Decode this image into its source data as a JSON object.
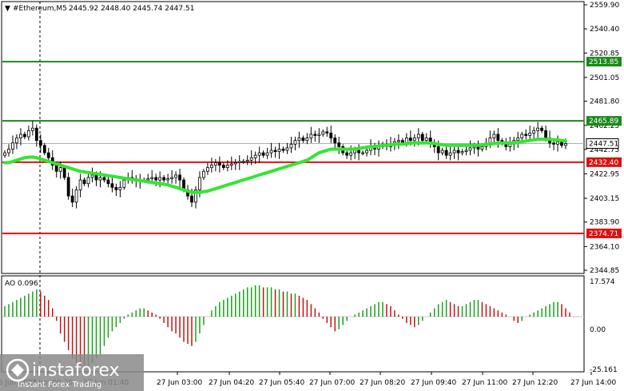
{
  "header": {
    "symbol_label": "#Ethereum,M5",
    "ohlc": "2445.92 2448.40 2445.74 2447.51"
  },
  "indicator": {
    "label": "AO 0.096",
    "scale_top": "17.574",
    "scale_mid": "0.00",
    "scale_bottom": "-25.161"
  },
  "watermark": {
    "brand": "instaforex",
    "tagline": "Instant Forex Trading"
  },
  "colors": {
    "bull_candle": "#000000",
    "bear_candle": "#000000",
    "ma_line": "#32e632",
    "resistance": "#1a8a1a",
    "support": "#dd1111",
    "ao_up": "#1aa11a",
    "ao_down": "#c41414",
    "current_price_tag": "#000000"
  },
  "chart_data": {
    "type": "candlestick",
    "title": "",
    "instrument": "#Ethereum",
    "timeframe": "M5",
    "y_ticks": [
      2559.9,
      2540.4,
      2520.85,
      2501.05,
      2481.8,
      2462.25,
      2442.75,
      2422.95,
      2403.15,
      2383.9,
      2364.1,
      2344.85
    ],
    "ylim": [
      2344.85,
      2559.9
    ],
    "x_tick_labels": [
      "26 Jun 2024",
      "27 Jun 00:20",
      "27 Jun 01:40",
      "27 Jun 03:00",
      "27 Jun 04:20",
      "27 Jun 05:40",
      "27 Jun 07:00",
      "27 Jun 08:20",
      "27 Jun 09:40",
      "27 Jun 11:00",
      "27 Jun 12:20",
      "27 Jun 14:00"
    ],
    "x_tick_labels_visible": [
      "26 Jun",
      "27 Jun 03:00",
      "27 Jun 04:20",
      "27 Jun 05:40",
      "27 Jun 07:00",
      "27 Jun 08:20",
      "27 Jun 09:40",
      "27 Jun 11:00",
      "27 Jun 12:20",
      "27 Jun 14:00"
    ],
    "x_tick_labels_visible_text": [
      "26 Jun 2024",
      "27 Jun 00:20",
      "27 Jun 01:40"
    ],
    "levels": [
      {
        "price": 2513.85,
        "label": "2513.85",
        "kind": "resistance"
      },
      {
        "price": 2465.89,
        "label": "2465.89",
        "kind": "resistance"
      },
      {
        "price": 2432.4,
        "label": "2432.40",
        "kind": "support"
      },
      {
        "price": 2374.71,
        "label": "2374.71",
        "kind": "support"
      }
    ],
    "current_price": {
      "price": 2447.51,
      "label": "2447.51"
    },
    "close": [
      2440,
      2443,
      2448,
      2452,
      2455,
      2453,
      2458,
      2460,
      2450,
      2446,
      2440,
      2436,
      2430,
      2425,
      2428,
      2420,
      2405,
      2400,
      2410,
      2418,
      2415,
      2420,
      2422,
      2418,
      2420,
      2418,
      2415,
      2412,
      2410,
      2412,
      2418,
      2420,
      2419,
      2417,
      2418,
      2418,
      2419,
      2420,
      2418,
      2420,
      2418,
      2419,
      2420,
      2422,
      2418,
      2410,
      2405,
      2400,
      2410,
      2420,
      2425,
      2428,
      2430,
      2432,
      2430,
      2428,
      2430,
      2431,
      2432,
      2433,
      2433,
      2434,
      2436,
      2438,
      2440,
      2438,
      2440,
      2442,
      2441,
      2443,
      2442,
      2444,
      2447,
      2450,
      2452,
      2450,
      2452,
      2455,
      2454,
      2455,
      2457,
      2456,
      2452,
      2448,
      2445,
      2440,
      2438,
      2440,
      2442,
      2440,
      2440,
      2442,
      2445,
      2443,
      2445,
      2447,
      2445,
      2447,
      2449,
      2450,
      2448,
      2452,
      2450,
      2452,
      2455,
      2450,
      2452,
      2448,
      2445,
      2440,
      2442,
      2438,
      2440,
      2442,
      2440,
      2441,
      2442,
      2444,
      2445,
      2443,
      2445,
      2448,
      2452,
      2455,
      2450,
      2448,
      2445,
      2447,
      2450,
      2452,
      2455,
      2454,
      2456,
      2458,
      2460,
      2458,
      2452,
      2448,
      2447,
      2449,
      2446,
      2447.51
    ],
    "ma": [
      2432,
      2432,
      2433,
      2434,
      2435,
      2436,
      2436.5,
      2436.5,
      2436,
      2435,
      2434,
      2433,
      2432,
      2431,
      2430,
      2429,
      2428,
      2427,
      2426,
      2425,
      2424.5,
      2424,
      2423.5,
      2423,
      2422.5,
      2422,
      2421.5,
      2421,
      2420.5,
      2420,
      2419.5,
      2419,
      2418.5,
      2418,
      2417.5,
      2417,
      2416.5,
      2416,
      2415.5,
      2415,
      2414.5,
      2414,
      2413,
      2412,
      2411,
      2410,
      2409,
      2408,
      2408,
      2408,
      2408.5,
      2409,
      2410,
      2411,
      2412,
      2413,
      2414,
      2415,
      2416,
      2417,
      2418,
      2419,
      2420,
      2421,
      2422,
      2423,
      2424,
      2425,
      2426,
      2427,
      2428,
      2429,
      2430,
      2431,
      2432,
      2433,
      2434,
      2436,
      2438,
      2440,
      2441,
      2442,
      2443,
      2443,
      2443,
      2443,
      2443,
      2443,
      2443,
      2443.5,
      2444,
      2444.5,
      2445,
      2445,
      2445.5,
      2446,
      2446,
      2446.5,
      2447,
      2447,
      2447,
      2447.5,
      2448,
      2448,
      2448,
      2448,
      2448,
      2448,
      2447.5,
      2447,
      2446.5,
      2446,
      2446,
      2446,
      2446,
      2446,
      2446,
      2446,
      2446,
      2446,
      2446.5,
      2447,
      2447,
      2447.5,
      2448,
      2448,
      2448,
      2448,
      2448,
      2448.5,
      2449,
      2449.5,
      2450,
      2450.5,
      2451,
      2451,
      2451,
      2451,
      2450.5,
      2450.5,
      2450,
      2449.5
    ],
    "ao": [
      5,
      6,
      7,
      8,
      9,
      10,
      11,
      12,
      13,
      12,
      10,
      8,
      4,
      -2,
      -8,
      -12,
      -16,
      -20,
      -22,
      -24,
      -25,
      -24,
      -22,
      -20,
      -18,
      -14,
      -10,
      -7,
      -5,
      -3,
      -1,
      1,
      2,
      3,
      4,
      4,
      3,
      2,
      1,
      -1,
      -3,
      -5,
      -7,
      -8,
      -10,
      -12,
      -13,
      -14,
      -12,
      -8,
      -4,
      0,
      3,
      5,
      7,
      8,
      9,
      10,
      11,
      12,
      13,
      14,
      14,
      15,
      15,
      14,
      14,
      14,
      13,
      13,
      12,
      12,
      11,
      11,
      10,
      9,
      8,
      6,
      4,
      2,
      -1,
      -3,
      -5,
      -7,
      -6,
      -4,
      -2,
      0,
      1,
      2,
      3,
      4,
      5,
      6,
      7,
      7,
      6,
      5,
      3,
      1,
      -1,
      -3,
      -4,
      -5,
      -4,
      -2,
      0,
      2,
      4,
      6,
      7,
      8,
      7,
      6,
      5,
      5,
      6,
      7,
      8,
      8,
      7,
      6,
      5,
      4,
      3,
      2,
      1,
      0,
      -2,
      -3,
      -2,
      0,
      1,
      2,
      3,
      4,
      5,
      6,
      7,
      7,
      6,
      4,
      2,
      0.1,
      0.096
    ],
    "ao_ylim": [
      -25.161,
      17.574
    ]
  }
}
